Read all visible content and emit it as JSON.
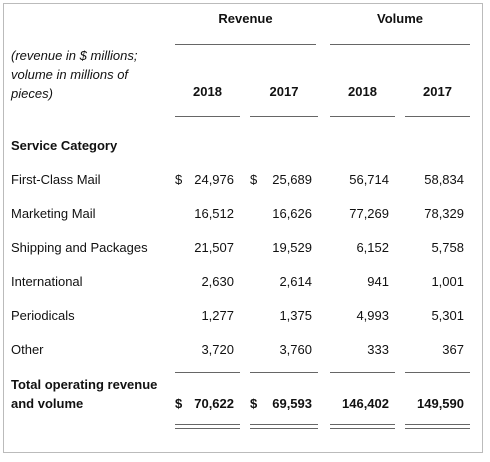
{
  "table": {
    "group_headers": [
      "Revenue",
      "Volume"
    ],
    "note": [
      "(revenue in $ millions;",
      "volume in millions of",
      "pieces)"
    ],
    "years": [
      "2018",
      "2017",
      "2018",
      "2017"
    ],
    "section": "Service Category",
    "rows": [
      {
        "label": "First-Class Mail",
        "currency": [
          "$",
          "$"
        ],
        "values": [
          "24,976",
          "25,689",
          "56,714",
          "58,834"
        ]
      },
      {
        "label": "Marketing Mail",
        "values": [
          "16,512",
          "16,626",
          "77,269",
          "78,329"
        ]
      },
      {
        "label": "Shipping and Packages",
        "values": [
          "21,507",
          "19,529",
          "6,152",
          "5,758"
        ]
      },
      {
        "label": "International",
        "values": [
          "2,630",
          "2,614",
          "941",
          "1,001"
        ]
      },
      {
        "label": "Periodicals",
        "values": [
          "1,277",
          "1,375",
          "4,993",
          "5,301"
        ]
      },
      {
        "label": "Other",
        "values": [
          "3,720",
          "3,760",
          "333",
          "367"
        ]
      }
    ],
    "total": {
      "label": [
        "Total operating revenue",
        "and volume"
      ],
      "currency": [
        "$",
        "$"
      ],
      "values": [
        "70,622",
        "69,593",
        "146,402",
        "149,590"
      ]
    }
  }
}
